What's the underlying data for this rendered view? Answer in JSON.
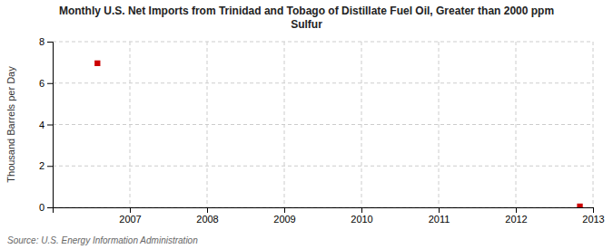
{
  "chart_data": {
    "type": "scatter",
    "title": "Monthly U.S. Net Imports from Trinidad and Tobago of Distillate Fuel Oil, Greater than 2000 ppm\nSulfur",
    "ylabel": "Thousand Barrels per Day",
    "annotations": [
      "Source: U.S. Energy Information Administration"
    ],
    "x": [
      2006.58,
      2012.83
    ],
    "values": [
      6.957,
      0.046
    ],
    "color": "#cc0000",
    "marker": "square",
    "xlim": [
      2006.0,
      2013.0
    ],
    "ylim": [
      0,
      8
    ],
    "xticks": [
      2007,
      2008,
      2009,
      2010,
      2011,
      2012,
      2013
    ],
    "yticks": [
      0,
      2,
      4,
      6,
      8
    ],
    "grid": true
  }
}
